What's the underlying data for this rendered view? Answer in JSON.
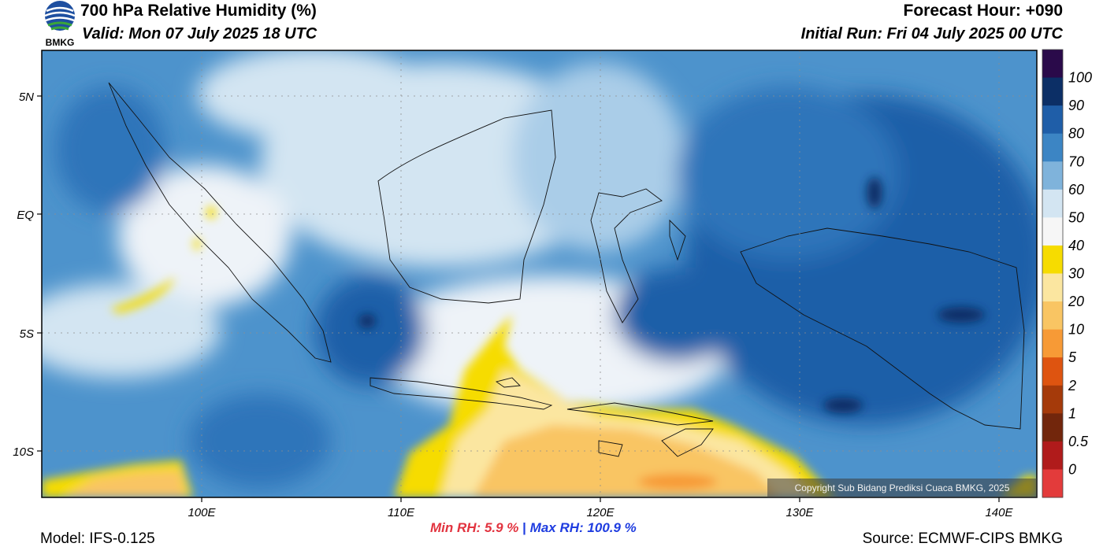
{
  "header": {
    "title": "700 hPa Relative Humidity (%)",
    "valid": "Valid: Mon 07 July 2025 18 UTC",
    "forecast_hour": "Forecast Hour: +090",
    "initial_run": "Initial Run: Fri 04 July 2025 00 UTC",
    "logo_text": "BMKG"
  },
  "map": {
    "lat_labels": [
      "5N",
      "EQ",
      "5S",
      "10S"
    ],
    "lon_labels": [
      "100E",
      "110E",
      "120E",
      "130E",
      "140E"
    ],
    "copyright": "Copyright Sub Bidang Prediksi Cuaca BMKG, 2025"
  },
  "colorbar": {
    "labels": [
      "100",
      "90",
      "80",
      "70",
      "60",
      "50",
      "40",
      "30",
      "20",
      "10",
      "5",
      "2",
      "1",
      "0.5",
      "0"
    ],
    "colors": [
      "#2a0a4a",
      "#0c2f66",
      "#1f5ea8",
      "#3c85c4",
      "#7fb3db",
      "#d3e5f2",
      "#f6f6f6",
      "#f6dc00",
      "#fbe6a0",
      "#f9c563",
      "#f79a36",
      "#de5410",
      "#a53a0a",
      "#72260c",
      "#b01b1b",
      "#e33b3b"
    ]
  },
  "stats": {
    "min_label": "Min RH:",
    "min_value": "5.9 %",
    "separator": "|",
    "max_label": "Max RH:",
    "max_value": "100.9 %"
  },
  "footer": {
    "model": "Model: IFS-0.125",
    "source": "Source: ECMWF-CIPS BMKG"
  }
}
